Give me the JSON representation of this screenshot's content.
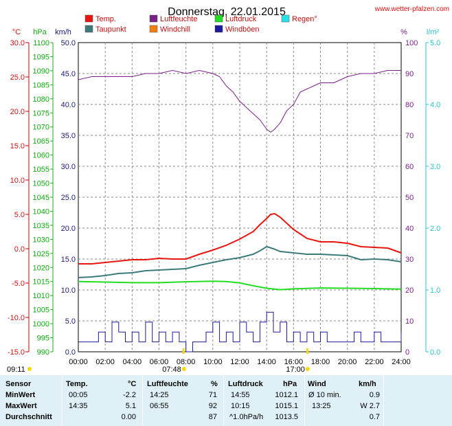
{
  "header": {
    "title": "Donnerstag, 22.01.2015",
    "site": "www.wetter-pfalzen.com"
  },
  "legend": [
    {
      "label": "Temp.",
      "color": "#e8140f"
    },
    {
      "label": "Luftfeuchte",
      "color": "#7a1f88"
    },
    {
      "label": "Luftdruck",
      "color": "#22dd22"
    },
    {
      "label": "Regen°",
      "color": "#29e0e6"
    },
    {
      "label": "Taupunkt",
      "color": "#3b7a7a"
    },
    {
      "label": "Windchill",
      "color": "#f27d12"
    },
    {
      "label": "Windböen",
      "color": "#1a1a9a"
    }
  ],
  "axis_units": {
    "temp": "°C",
    "pressure": "hPa",
    "wind": "km/h",
    "humidity": "%",
    "rain": "l/m²"
  },
  "axes": {
    "temp_ticks": [
      "30.0",
      "25.0",
      "20.0",
      "15.0",
      "10.0",
      "5.0",
      "0.0",
      "-5.0",
      "-10.0",
      "-15.0"
    ],
    "pressure_ticks": [
      "1100",
      "1095",
      "1090",
      "1085",
      "1080",
      "1075",
      "1070",
      "1065",
      "1060",
      "1055",
      "1050",
      "1045",
      "1040",
      "1035",
      "1030",
      "1025",
      "1020",
      "1015",
      "1010",
      "1005",
      "1000",
      "995",
      "990"
    ],
    "wind_ticks": [
      "50.0",
      "45.0",
      "40.0",
      "35.0",
      "30.0",
      "25.0",
      "20.0",
      "15.0",
      "10.0",
      "5.0",
      "0.0"
    ],
    "humidity_ticks": [
      "100",
      "90",
      "80",
      "70",
      "60",
      "50",
      "40",
      "30",
      "20",
      "10",
      "0"
    ],
    "rain_ticks": [
      "5.0",
      "4.0",
      "3.0",
      "2.0",
      "1.0",
      "0.0"
    ],
    "time_ticks": [
      "00:00",
      "02:00",
      "04:00",
      "06:00",
      "08:00",
      "10:00",
      "12:00",
      "14:00",
      "16:00",
      "18:00",
      "20:00",
      "22:00",
      "24:00"
    ],
    "sun": {
      "sunrise": "07:48",
      "sunset": "17:00",
      "moonset": "09:11"
    }
  },
  "chart_data": {
    "type": "line",
    "x_unit": "hours",
    "x_range": [
      0,
      24
    ],
    "series": [
      {
        "name": "Luftfeuchte",
        "axis": "humidity",
        "color": "#7a1f88",
        "x": [
          0,
          1,
          2,
          3,
          4,
          5,
          6,
          7,
          8,
          9,
          10,
          10.5,
          11,
          11.5,
          12,
          12.5,
          13,
          13.5,
          14,
          14.3,
          14.6,
          15,
          15.5,
          16,
          16.5,
          17,
          17.5,
          18,
          19,
          20,
          21,
          22,
          23,
          24
        ],
        "y": [
          88,
          89,
          89,
          89,
          89,
          90,
          90,
          91,
          90,
          91,
          90,
          89,
          86,
          84,
          81,
          79,
          77,
          75,
          72,
          71,
          72,
          74,
          78,
          80,
          84,
          85,
          86,
          87,
          87,
          89,
          90,
          90,
          91,
          91
        ]
      },
      {
        "name": "Temp.",
        "axis": "temp",
        "color": "#e8140f",
        "x": [
          0,
          1,
          2,
          3,
          4,
          5,
          6,
          7,
          8,
          9,
          10,
          11,
          12,
          13,
          13.5,
          14,
          14.3,
          14.6,
          15,
          16,
          17,
          18,
          19,
          20,
          21,
          22,
          23,
          24
        ],
        "y": [
          -2.2,
          -2.2,
          -2.0,
          -1.8,
          -1.6,
          -1.6,
          -1.4,
          -1.5,
          -1.5,
          -0.8,
          -0.2,
          0.5,
          1.4,
          2.5,
          3.5,
          4.4,
          5.0,
          5.1,
          4.6,
          2.8,
          1.5,
          1.0,
          1.0,
          0.8,
          0.3,
          0.2,
          0.1,
          -0.6
        ]
      },
      {
        "name": "Taupunkt",
        "axis": "temp",
        "color": "#3b7a7a",
        "x": [
          0,
          1,
          2,
          3,
          4,
          5,
          6,
          7,
          8,
          9,
          10,
          11,
          12,
          13,
          13.5,
          14,
          14.5,
          15,
          16,
          17,
          18,
          19,
          20,
          21,
          22,
          23,
          24
        ],
        "y": [
          -4.2,
          -4.1,
          -3.9,
          -3.6,
          -3.5,
          -3.2,
          -3.1,
          -3.0,
          -2.9,
          -2.4,
          -2.0,
          -1.6,
          -1.3,
          -0.8,
          -0.3,
          0.3,
          0.0,
          -0.4,
          -0.6,
          -0.8,
          -0.8,
          -0.9,
          -1.0,
          -1.6,
          -1.5,
          -1.6,
          -1.9
        ]
      },
      {
        "name": "Luftdruck",
        "axis": "pressure",
        "color": "#22dd22",
        "x": [
          0,
          2,
          4,
          6,
          8,
          10,
          11,
          12,
          13,
          14,
          15,
          16,
          18,
          20,
          22,
          24
        ],
        "y": [
          1015.0,
          1014.8,
          1014.6,
          1014.6,
          1014.9,
          1015.1,
          1015.0,
          1014.5,
          1013.5,
          1012.6,
          1012.1,
          1012.4,
          1012.7,
          1012.6,
          1012.5,
          1012.3
        ]
      },
      {
        "name": "Windböen",
        "axis": "wind",
        "color": "#1a1a9a",
        "x": [
          0,
          0.5,
          1,
          1.5,
          2,
          2.5,
          3,
          3.5,
          4,
          4.5,
          5,
          5.5,
          6,
          6.5,
          7,
          7.5,
          8,
          8.5,
          9,
          9.5,
          10,
          10.5,
          11,
          11.5,
          12,
          12.5,
          13,
          13.5,
          14,
          14.5,
          15,
          15.5,
          16,
          16.5,
          17,
          17.5,
          18,
          18.5,
          19,
          19.5,
          20,
          20.5,
          21,
          21.5,
          22,
          22.5,
          23,
          23.5,
          24
        ],
        "y": [
          1.6,
          1.6,
          1.6,
          3.2,
          1.6,
          4.8,
          3.2,
          1.6,
          3.2,
          1.6,
          4.8,
          1.6,
          3.2,
          1.6,
          3.2,
          1.6,
          0,
          1.6,
          1.6,
          3.2,
          4.8,
          1.6,
          3.2,
          1.6,
          4.8,
          3.2,
          1.6,
          4.8,
          6.4,
          3.2,
          4.8,
          1.6,
          3.2,
          1.6,
          3.2,
          1.6,
          3.2,
          1.6,
          1.6,
          1.6,
          1.6,
          3.2,
          1.6,
          1.6,
          3.2,
          1.6,
          1.6,
          1.6,
          3.2
        ]
      }
    ],
    "axes_def": {
      "temp": [
        -15,
        30
      ],
      "pressure": [
        990,
        1100
      ],
      "wind": [
        0,
        50
      ],
      "humidity": [
        0,
        100
      ],
      "rain": [
        0,
        5
      ]
    },
    "grid": true
  },
  "table": {
    "headers": [
      "Sensor",
      "Temp.",
      "°C",
      "Luftfeuchte",
      "%",
      "Luftdruck",
      "hPa",
      "Wind",
      "km/h"
    ],
    "rows": [
      {
        "label": "MinWert",
        "temp_time": "00:05",
        "temp": "-2.2",
        "hum_time": "14:25",
        "hum": "71",
        "pres_time": "14:55",
        "pres": "1012.1",
        "wind_label": "Ø 10 min.",
        "wind": "0.9"
      },
      {
        "label": "MaxWert",
        "temp_time": "14:35",
        "temp": "5.1",
        "hum_time": "06:55",
        "hum": "92",
        "pres_time": "10:15",
        "pres": "1015.1",
        "wind_label": "13:25",
        "wind": "W 2.7"
      },
      {
        "label": "Durchschnitt",
        "temp_time": "",
        "temp": "0.00",
        "hum_time": "",
        "hum": "87",
        "pres_time": "^1.0hPa/h",
        "pres": "1013.5",
        "wind_label": "",
        "wind": "0.7"
      }
    ]
  }
}
